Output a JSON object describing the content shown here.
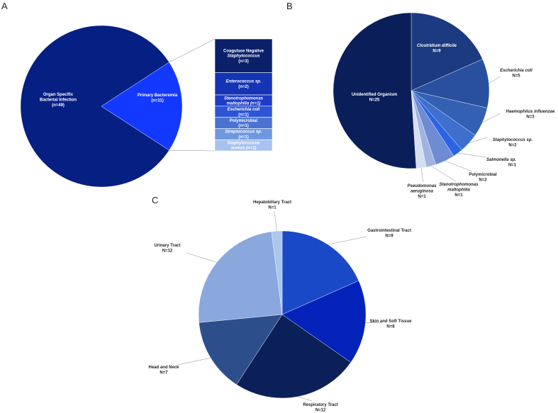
{
  "chart_data": [
    {
      "panel": "A",
      "type": "pie",
      "slices": [
        {
          "label": "Organ Specific Bacterial Infection",
          "lines": [
            "Organ Specific",
            "Bacterial Infection",
            "(n=49)"
          ],
          "value": 49,
          "color": "#061f82"
        },
        {
          "label": "Primary Bacteremia",
          "lines": [
            "Primary Bacteremia",
            "(n=11)"
          ],
          "value": 11,
          "color": "#1338ff"
        }
      ],
      "breakdown": {
        "type": "stacked-bar",
        "of": "Primary Bacteremia",
        "segments": [
          {
            "lines": [
              "Coagulase Negative",
              "Staphylococcus",
              "(n=3)"
            ],
            "italic": [
              false,
              true,
              false
            ],
            "value": 3,
            "color": "#0a2169"
          },
          {
            "lines": [
              "Enterococcus sp.",
              "(n=2)"
            ],
            "italic": [
              true,
              false
            ],
            "value": 2,
            "color": "#1533b5"
          },
          {
            "lines": [
              "Stenotrophomonas",
              "maltophilia (n=1)"
            ],
            "italic": [
              true,
              true
            ],
            "value": 1,
            "color": "#1f3cc7"
          },
          {
            "lines": [
              "Escherichia coli",
              "(n=1)"
            ],
            "italic": [
              true,
              false
            ],
            "value": 1,
            "color": "#2c55d6"
          },
          {
            "lines": [
              "Polymicrobial",
              "(n=1)"
            ],
            "italic": [
              false,
              false
            ],
            "value": 1,
            "color": "#4a72d0"
          },
          {
            "lines": [
              "Streptococcus sp.",
              "(n=1)"
            ],
            "italic": [
              true,
              false
            ],
            "value": 1,
            "color": "#6e97df"
          },
          {
            "lines": [
              "Staphylococcus",
              "aureus (n=1)"
            ],
            "italic": [
              true,
              true
            ],
            "value": 1,
            "color": "#a7c2ee"
          }
        ]
      }
    },
    {
      "panel": "B",
      "type": "pie",
      "slices": [
        {
          "label": "Clostridium difficile",
          "lines": [
            "Clostridium difficile",
            "N=9"
          ],
          "italic": [
            true,
            false
          ],
          "value": 9,
          "color": "#1b3a7f"
        },
        {
          "label": "Escherichia coli",
          "lines": [
            "Escherichia coli",
            "N=5"
          ],
          "italic": [
            true,
            false
          ],
          "value": 5,
          "color": "#29509e"
        },
        {
          "label": "Haemophilus influenzae",
          "lines": [
            "Haemophilus influenzae",
            "N=3"
          ],
          "italic": [
            true,
            false
          ],
          "value": 3,
          "color": "#3360b2"
        },
        {
          "label": "Staphylococcus sp.",
          "lines": [
            "Staphylococcus sp.",
            "N=2"
          ],
          "italic": [
            true,
            false
          ],
          "value": 2,
          "color": "#3e6fcd"
        },
        {
          "label": "Salmonella sp.",
          "lines": [
            "Salmonella sp.",
            "N=1"
          ],
          "italic": [
            true,
            false
          ],
          "value": 1,
          "color": "#2c63e4"
        },
        {
          "label": "Polymicrobial",
          "lines": [
            "Polymicrobial",
            "N=2"
          ],
          "italic": [
            false,
            false
          ],
          "value": 2,
          "color": "#6e8bd4"
        },
        {
          "label": "Stenotrophomonas maltophilia",
          "lines": [
            "Stenotrophomonas",
            "maltophilia",
            "N=1"
          ],
          "italic": [
            true,
            true,
            false
          ],
          "value": 1,
          "color": "#a1b3e0"
        },
        {
          "label": "Pseudomonas aeruginosa",
          "lines": [
            "Pseudomonas",
            "aeruginosa",
            "N=1"
          ],
          "italic": [
            true,
            true,
            false
          ],
          "value": 1,
          "color": "#d6dff2"
        },
        {
          "label": "Unidentified Organism",
          "lines": [
            "Unidentified Organism",
            "N=25"
          ],
          "italic": [
            false,
            false
          ],
          "value": 25,
          "color": "#0a1f5a"
        }
      ]
    },
    {
      "panel": "C",
      "type": "pie",
      "slices": [
        {
          "label": "Gastrointestinal Tract",
          "lines": [
            "Gastrointestinal Tract",
            "N=9"
          ],
          "value": 9,
          "color": "#1a49c8"
        },
        {
          "label": "Skin and Soft Tissue",
          "lines": [
            "Skin and Soft Tissue",
            "N=8"
          ],
          "value": 8,
          "color": "#0322b9"
        },
        {
          "label": "Respiratory Tract",
          "lines": [
            "Respiratory Tract",
            "N=12"
          ],
          "value": 12,
          "color": "#0b1f58"
        },
        {
          "label": "Head and Neck",
          "lines": [
            "Head and Neck",
            "N=7"
          ],
          "value": 7,
          "color": "#2c4f8c"
        },
        {
          "label": "Urinary Tract",
          "lines": [
            "Urinary Tract",
            "N=12"
          ],
          "value": 12,
          "color": "#8aa7de"
        },
        {
          "label": "Hepatobiliary Tract",
          "lines": [
            "Hepatobiliary Tract",
            "N=1"
          ],
          "value": 1,
          "color": "#aac7ee"
        }
      ]
    }
  ]
}
